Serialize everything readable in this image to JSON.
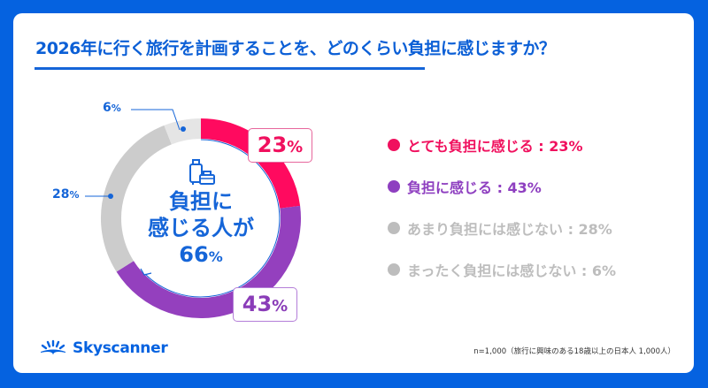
{
  "title": "2026年に行く旅行を計画することを、どのくらい負担に感じますか？",
  "center": {
    "line1": "負担に",
    "line2": "感じる人が",
    "value": "66",
    "unit": "%"
  },
  "labels": {
    "very": {
      "value": "23",
      "unit": "%"
    },
    "some": {
      "value": "43",
      "unit": "%"
    },
    "not_much": {
      "value": "28",
      "unit": "%"
    },
    "not_at_all": {
      "value": "6",
      "unit": "%"
    }
  },
  "legend": [
    {
      "label": "とても負担に感じる : 23%",
      "color": "#F0105E"
    },
    {
      "label": "負担に感じる : 43%",
      "color": "#8E3FC0"
    },
    {
      "label": "あまり負担には感じない : 28%",
      "color": "#BDBDBD"
    },
    {
      "label": "まったく負担には感じない : 6%",
      "color": "#BDBDBD"
    }
  ],
  "logo": {
    "name": "Skyscanner"
  },
  "footnote": "n=1,000（旅行に興味のある18歳以上の日本人 1,000人）",
  "colors": {
    "background": "#0562E0",
    "very": "#FF0A5F",
    "some": "#9440BE",
    "not_much": "#CCCCCC",
    "not_at_all": "#E5E5E5",
    "accent": "#1565D8"
  },
  "chart_data": {
    "type": "pie",
    "subtype": "donut",
    "title": "2026年に行く旅行を計画することを、どのくらい負担に感じますか？",
    "categories": [
      "とても負担に感じる",
      "負担に感じる",
      "あまり負担には感じない",
      "まったく負担には感じない"
    ],
    "values": [
      23,
      43,
      28,
      6
    ],
    "unit": "%",
    "center_annotation": "負担に感じる人が 66%",
    "legend_position": "right",
    "sample_note": "n=1,000（旅行に興味のある18歳以上の日本人 1,000人）"
  }
}
